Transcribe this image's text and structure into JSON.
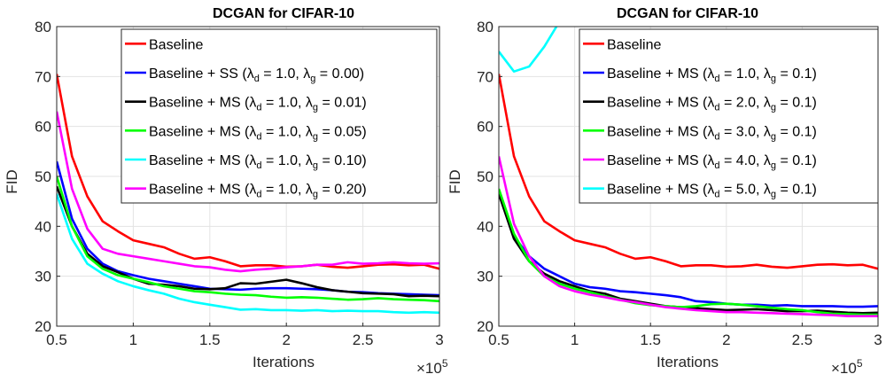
{
  "chart_data": [
    {
      "type": "line",
      "title": "DCGAN for CIFAR-10",
      "xlabel": "Iterations",
      "ylabel": "FID",
      "xlim": [
        0.5,
        3
      ],
      "ylim": [
        20,
        80
      ],
      "x_exponent_label": "×10^5",
      "x_ticks": [
        "0.5",
        "1",
        "1.5",
        "2",
        "2.5",
        "3"
      ],
      "y_ticks": [
        "20",
        "30",
        "40",
        "50",
        "60",
        "70",
        "80"
      ],
      "grid": true,
      "legend_position": "top-right",
      "x": [
        0.5,
        0.6,
        0.7,
        0.8,
        0.9,
        1.0,
        1.1,
        1.2,
        1.3,
        1.4,
        1.5,
        1.6,
        1.7,
        1.8,
        1.9,
        2.0,
        2.1,
        2.2,
        2.3,
        2.4,
        2.5,
        2.6,
        2.7,
        2.8,
        2.9,
        3.0
      ],
      "series": [
        {
          "name": "Baseline",
          "legend_main": "Baseline",
          "legend_ld": "",
          "legend_lg": "",
          "color": "#ff0000",
          "values": [
            70.5,
            54.0,
            46.0,
            41.0,
            39.0,
            37.2,
            36.5,
            35.8,
            34.5,
            33.5,
            33.8,
            33.0,
            32.0,
            32.2,
            32.2,
            31.9,
            32.0,
            32.3,
            31.9,
            31.7,
            32.0,
            32.3,
            32.4,
            32.2,
            32.3,
            31.5
          ]
        },
        {
          "name": "Baseline + SS (λd = 1.0, λg = 0.00)",
          "legend_main": "Baseline + SS (",
          "legend_ld": "1.0",
          "legend_lg": "0.00",
          "color": "#0000ff",
          "values": [
            53.0,
            41.5,
            35.5,
            32.5,
            31.0,
            30.2,
            29.5,
            29.0,
            28.5,
            28.0,
            27.5,
            27.4,
            27.3,
            27.5,
            27.6,
            27.6,
            27.5,
            27.4,
            27.2,
            26.9,
            26.8,
            26.6,
            26.5,
            26.4,
            26.3,
            26.2
          ]
        },
        {
          "name": "Baseline + MS (λd = 1.0, λg = 0.01)",
          "legend_main": "Baseline + MS (",
          "legend_ld": "1.0",
          "legend_lg": "0.01",
          "color": "#000000",
          "values": [
            48.0,
            40.0,
            34.5,
            32.0,
            30.8,
            29.5,
            28.5,
            28.3,
            28.0,
            27.5,
            27.4,
            27.6,
            28.6,
            28.5,
            28.9,
            29.3,
            28.6,
            27.8,
            27.2,
            26.9,
            26.6,
            26.5,
            26.4,
            26.0,
            26.1,
            26.0
          ]
        },
        {
          "name": "Baseline + MS (λd = 1.0, λg = 0.05)",
          "legend_main": "Baseline + MS (",
          "legend_ld": "1.0",
          "legend_lg": "0.05",
          "color": "#00ff00",
          "values": [
            50.0,
            40.0,
            34.0,
            31.5,
            30.2,
            29.5,
            28.8,
            28.0,
            27.5,
            27.0,
            26.8,
            26.5,
            26.3,
            26.2,
            25.9,
            25.7,
            25.8,
            25.7,
            25.5,
            25.3,
            25.4,
            25.6,
            25.4,
            25.3,
            25.2,
            25.0
          ]
        },
        {
          "name": "Baseline + MS (λd = 1.0, λg = 0.10)",
          "legend_main": "Baseline + MS (",
          "legend_ld": "1.0",
          "legend_lg": "0.10",
          "color": "#00ffff",
          "values": [
            46.5,
            37.5,
            32.5,
            30.5,
            29.0,
            28.0,
            27.2,
            26.5,
            25.5,
            24.8,
            24.3,
            23.8,
            23.3,
            23.4,
            23.2,
            23.2,
            23.1,
            23.2,
            23.0,
            23.1,
            23.0,
            23.0,
            22.8,
            22.7,
            22.8,
            22.7
          ]
        },
        {
          "name": "Baseline + MS (λd = 1.0, λg = 0.20)",
          "legend_main": "Baseline + MS (",
          "legend_ld": "1.0",
          "legend_lg": "0.20",
          "color": "#ff00ff",
          "values": [
            63.0,
            47.5,
            39.5,
            35.5,
            34.5,
            34.0,
            33.5,
            33.0,
            32.5,
            32.0,
            31.8,
            31.3,
            31.0,
            31.3,
            31.5,
            31.8,
            32.0,
            32.3,
            32.3,
            32.8,
            32.5,
            32.6,
            32.8,
            32.6,
            32.5,
            32.6
          ]
        }
      ]
    },
    {
      "type": "line",
      "title": "DCGAN for CIFAR-10",
      "xlabel": "Iterations",
      "ylabel": "FID",
      "xlim": [
        0.5,
        3
      ],
      "ylim": [
        20,
        80
      ],
      "x_exponent_label": "×10^5",
      "x_ticks": [
        "0.5",
        "1",
        "1.5",
        "2",
        "2.5",
        "3"
      ],
      "y_ticks": [
        "20",
        "30",
        "40",
        "50",
        "60",
        "70",
        "80"
      ],
      "grid": true,
      "legend_position": "top-right",
      "x": [
        0.5,
        0.6,
        0.7,
        0.8,
        0.9,
        1.0,
        1.1,
        1.2,
        1.3,
        1.4,
        1.5,
        1.6,
        1.7,
        1.8,
        1.9,
        2.0,
        2.1,
        2.2,
        2.3,
        2.4,
        2.5,
        2.6,
        2.7,
        2.8,
        2.9,
        3.0
      ],
      "series": [
        {
          "name": "Baseline",
          "legend_main": "Baseline",
          "legend_ld": "",
          "legend_lg": "",
          "color": "#ff0000",
          "values": [
            70.5,
            54.0,
            46.0,
            41.0,
            39.0,
            37.2,
            36.5,
            35.8,
            34.5,
            33.5,
            33.8,
            33.0,
            32.0,
            32.2,
            32.2,
            31.9,
            32.0,
            32.3,
            31.9,
            31.7,
            32.0,
            32.3,
            32.4,
            32.2,
            32.3,
            31.5
          ]
        },
        {
          "name": "Baseline + MS (λd = 1.0, λg = 0.1)",
          "legend_main": "Baseline + MS (",
          "legend_ld": "1.0",
          "legend_lg": "0.1",
          "color": "#0000ff",
          "values": [
            47.0,
            38.0,
            34.0,
            31.5,
            30.0,
            28.5,
            27.8,
            27.5,
            27.0,
            26.8,
            26.5,
            26.2,
            25.8,
            25.0,
            24.8,
            24.5,
            24.3,
            24.3,
            24.1,
            24.2,
            24.0,
            24.0,
            24.0,
            23.9,
            23.9,
            24.0
          ]
        },
        {
          "name": "Baseline + MS (λd = 2.0, λg = 0.1)",
          "legend_main": "Baseline + MS (",
          "legend_ld": "2.0",
          "legend_lg": "0.1",
          "color": "#000000",
          "values": [
            46.5,
            37.5,
            33.0,
            30.5,
            29.0,
            28.0,
            27.0,
            26.5,
            25.5,
            25.0,
            24.5,
            24.0,
            23.8,
            23.6,
            23.4,
            23.2,
            23.3,
            23.4,
            23.2,
            23.0,
            23.0,
            23.1,
            22.9,
            22.7,
            22.6,
            22.7
          ]
        },
        {
          "name": "Baseline + MS (λd = 3.0, λg = 0.1)",
          "legend_main": "Baseline + MS (",
          "legend_ld": "3.0",
          "legend_lg": "0.1",
          "color": "#00ff00",
          "values": [
            47.5,
            38.5,
            33.0,
            30.0,
            28.5,
            27.5,
            26.8,
            26.0,
            25.3,
            24.6,
            24.2,
            24.0,
            23.8,
            24.0,
            24.4,
            24.5,
            24.3,
            24.0,
            23.7,
            23.4,
            23.2,
            22.8,
            22.5,
            22.4,
            22.3,
            22.3
          ]
        },
        {
          "name": "Baseline + MS (λd = 4.0, λg = 0.1)",
          "legend_main": "Baseline + MS (",
          "legend_ld": "4.0",
          "legend_lg": "0.1",
          "color": "#ff00ff",
          "values": [
            54.0,
            40.5,
            34.0,
            30.0,
            28.0,
            27.0,
            26.3,
            25.8,
            25.2,
            24.8,
            24.3,
            23.8,
            23.5,
            23.2,
            23.0,
            22.8,
            22.8,
            22.7,
            22.6,
            22.5,
            22.4,
            22.3,
            22.2,
            22.0,
            22.0,
            22.0
          ]
        },
        {
          "name": "Baseline + MS (λd = 5.0, λg = 0.1)",
          "legend_main": "Baseline + MS (",
          "legend_ld": "5.0",
          "legend_lg": "0.1",
          "color": "#00ffff",
          "values": [
            75.0,
            71.0,
            72.0,
            76.0,
            81.0,
            null,
            null,
            null,
            null,
            null,
            null,
            null,
            null,
            null,
            null,
            null,
            null,
            null,
            null,
            null,
            null,
            null,
            null,
            null,
            null,
            null
          ]
        }
      ]
    }
  ]
}
